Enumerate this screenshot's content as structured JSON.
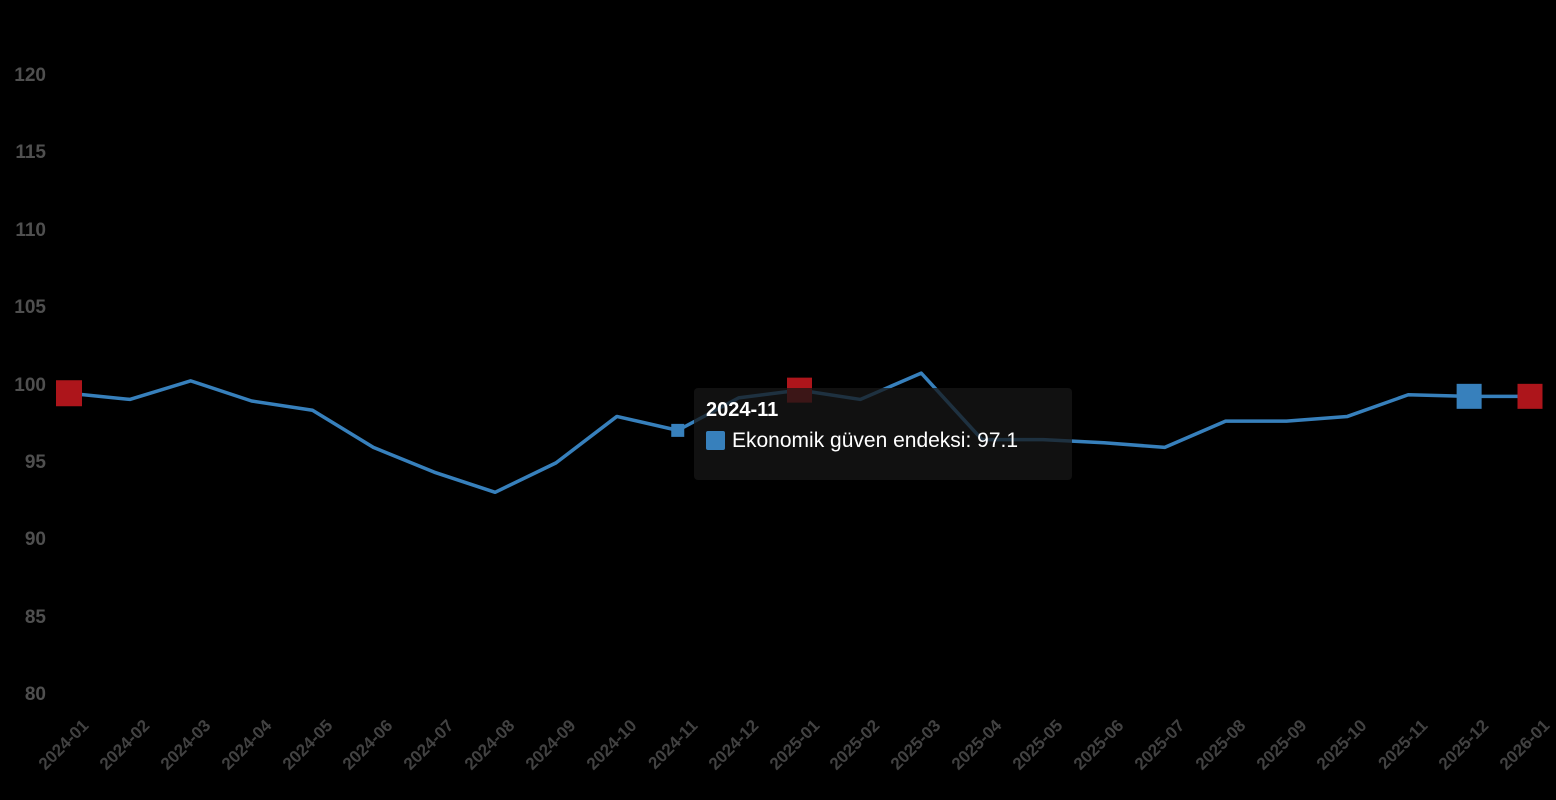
{
  "chart_data": {
    "type": "line",
    "title": "",
    "xlabel": "",
    "ylabel": "",
    "categories": [
      "2024-01",
      "2024-02",
      "2024-03",
      "2024-04",
      "2024-05",
      "2024-06",
      "2024-07",
      "2024-08",
      "2024-09",
      "2024-10",
      "2024-11",
      "2024-12",
      "2025-01",
      "2025-02",
      "2025-03",
      "2025-04",
      "2025-05",
      "2025-06",
      "2025-07",
      "2025-08",
      "2025-09",
      "2025-10",
      "2025-11",
      "2025-12",
      "2026-01"
    ],
    "series": [
      {
        "name": "Ekonomik güven endeksi",
        "color": "#3780BC",
        "values": [
          99.5,
          99.1,
          100.3,
          99.0,
          98.4,
          96.0,
          94.4,
          93.1,
          95.0,
          98.0,
          97.1,
          99.2,
          99.7,
          99.1,
          100.8,
          96.5,
          96.5,
          96.3,
          96.0,
          97.7,
          97.7,
          98.0,
          99.4,
          99.3,
          99.3
        ]
      }
    ],
    "yticks": [
      80,
      85,
      90,
      95,
      100,
      105,
      110,
      115,
      120
    ],
    "ylim": [
      80,
      120
    ],
    "grid": false,
    "legend": "none",
    "background": "#000000",
    "x_tick_rotation": -45,
    "markers": [
      {
        "category": "2024-01",
        "index": 0,
        "shape": "square",
        "color": "#AD151B",
        "size": 26,
        "role": "highlight"
      },
      {
        "category": "2024-11",
        "index": 10,
        "shape": "square",
        "color": "#3780BC",
        "size": 13,
        "role": "hovered-point"
      },
      {
        "category": "2025-01",
        "index": 12,
        "shape": "square",
        "color": "#AD151B",
        "size": 25,
        "role": "highlight"
      },
      {
        "category": "2025-12",
        "index": 23,
        "shape": "square",
        "color": "#3780BC",
        "size": 25,
        "role": "highlight"
      },
      {
        "category": "2026-01",
        "index": 24,
        "shape": "square",
        "color": "#AD151B",
        "size": 25,
        "role": "highlight"
      }
    ]
  },
  "tooltip": {
    "title": "2024-11",
    "series_label": "Ekonomik güven endeksi",
    "value": "97.1",
    "body": "Ekonomik güven endeksi: 97.1",
    "swatch_color": "#3780BC",
    "background": "rgba(23,23,23,0.75)",
    "text_color": "#FFFFFF"
  },
  "axes": {
    "y_label_color": "#4F4F4F",
    "x_label_color": "#424242"
  }
}
